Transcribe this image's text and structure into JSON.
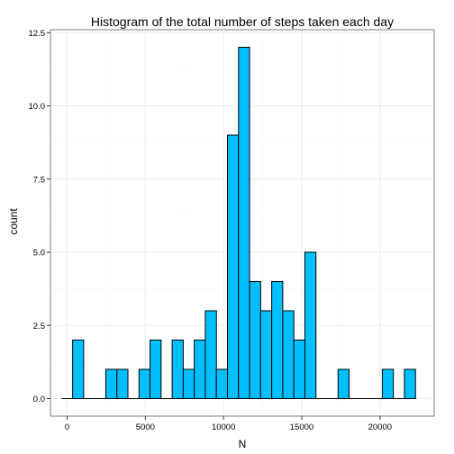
{
  "chart_data": {
    "type": "bar",
    "title": "Histogram of the total number of steps taken each day",
    "xlabel": "N",
    "ylabel": "count",
    "xlim": [
      -1065,
      23465
    ],
    "ylim": [
      -0.6,
      12.6
    ],
    "x_ticks": [
      0,
      5000,
      10000,
      15000,
      20000
    ],
    "x_tick_labels": [
      "0",
      "5000",
      "10000",
      "15000",
      "20000"
    ],
    "y_ticks": [
      0,
      2.5,
      5,
      7.5,
      10,
      12.5
    ],
    "y_tick_labels": [
      "0.0",
      "2.5",
      "5.0",
      "7.5",
      "10.0",
      "12.5"
    ],
    "bin_width": 707,
    "bin_start": -354,
    "counts": [
      0,
      2,
      0,
      0,
      1,
      1,
      0,
      1,
      2,
      0,
      2,
      1,
      2,
      3,
      1,
      9,
      12,
      4,
      3,
      4,
      3,
      2,
      5,
      0,
      0,
      1,
      0,
      0,
      0,
      1,
      0,
      1
    ],
    "bar_color": "#00bfff",
    "bar_outline": "#000000",
    "grid": true,
    "background": "#ffffff"
  }
}
